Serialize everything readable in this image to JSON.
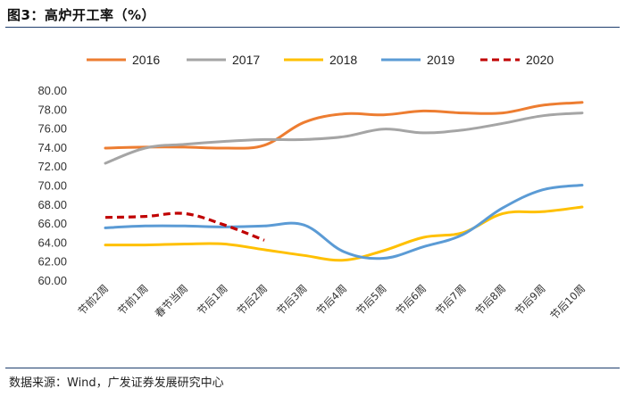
{
  "title": "图3：高炉开工率（%）",
  "source": "数据来源：Wind，广发证券发展研究中心",
  "chart_data": {
    "type": "line",
    "title": "高炉开工率（%）",
    "xlabel": "",
    "ylabel": "",
    "ylim": [
      60,
      80
    ],
    "ytick_step": 2,
    "ytick_decimals": 2,
    "categories": [
      "节前2周",
      "节前1周",
      "春节当周",
      "节后1周",
      "节后2周",
      "节后3周",
      "节后4周",
      "节后5周",
      "节后6周",
      "节后7周",
      "节后8周",
      "节后9周",
      "节后10周"
    ],
    "series": [
      {
        "name": "2016",
        "color": "#ed7d31",
        "dash": false,
        "values": [
          73.9,
          74.0,
          74.0,
          73.9,
          74.2,
          76.6,
          77.5,
          77.4,
          77.8,
          77.6,
          77.6,
          78.4,
          78.7
        ]
      },
      {
        "name": "2017",
        "color": "#a5a5a5",
        "dash": false,
        "values": [
          72.3,
          73.9,
          74.3,
          74.6,
          74.8,
          74.8,
          75.1,
          75.9,
          75.5,
          75.8,
          76.5,
          77.3,
          77.6
        ]
      },
      {
        "name": "2018",
        "color": "#ffc000",
        "dash": false,
        "values": [
          63.7,
          63.7,
          63.8,
          63.8,
          63.2,
          62.6,
          62.1,
          63.1,
          64.5,
          65.0,
          67.0,
          67.2,
          67.7
        ]
      },
      {
        "name": "2019",
        "color": "#5b9bd5",
        "dash": false,
        "values": [
          65.5,
          65.7,
          65.7,
          65.6,
          65.7,
          65.8,
          63.0,
          62.3,
          63.5,
          64.8,
          67.6,
          69.5,
          70.0
        ]
      },
      {
        "name": "2020",
        "color": "#c00000",
        "dash": true,
        "values": [
          66.6,
          66.7,
          67.0,
          65.8,
          64.2,
          null,
          null,
          null,
          null,
          null,
          null,
          null,
          null
        ]
      }
    ],
    "legend": "top",
    "grid": false
  }
}
